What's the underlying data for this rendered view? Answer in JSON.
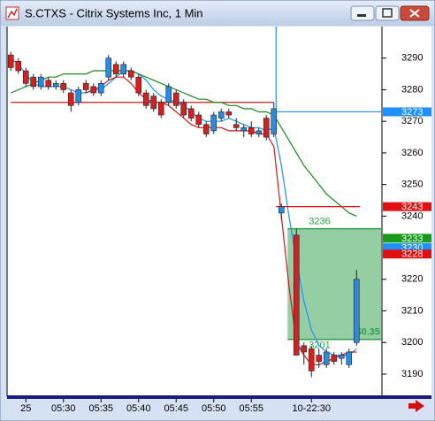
{
  "chart_data": {
    "type": "candlestick",
    "title": "S.CTXS - Citrix Systems Inc, 1 Min",
    "categories": [
      null,
      null,
      "25",
      null,
      null,
      null,
      null,
      "05:30",
      null,
      null,
      null,
      null,
      "05:35",
      null,
      null,
      null,
      null,
      "05:40",
      null,
      null,
      null,
      null,
      "05:45",
      null,
      null,
      null,
      null,
      "05:50",
      null,
      null,
      null,
      null,
      "05:55",
      null,
      null,
      null,
      null,
      null,
      null,
      null,
      "10-22:30",
      null,
      null,
      null,
      null,
      null,
      null
    ],
    "open": [
      3291,
      3289,
      3286,
      3284,
      3281,
      3283,
      3281,
      3282,
      3279,
      3276,
      3282,
      3281,
      3279,
      3284,
      3288,
      3285,
      3286,
      3284,
      3279,
      3278,
      3276,
      3276,
      3279,
      3276,
      3274,
      3272,
      3269,
      3267,
      3271,
      3273,
      3269,
      3267,
      3268,
      3266,
      3271,
      3266,
      3241,
      null,
      3234,
      3199,
      3198,
      3196,
      3193,
      3196,
      3195,
      3193,
      3200
    ],
    "high": [
      3292,
      3290,
      3287,
      3285,
      3285,
      3284,
      3283,
      3283,
      3280,
      3281,
      3283,
      3282,
      3283,
      3291,
      3289,
      3289,
      3287,
      3285,
      3280,
      3279,
      3277,
      3282,
      3280,
      3277,
      3275,
      3273,
      3270,
      3273,
      3274,
      3274,
      3271,
      3269,
      3270,
      3268,
      3272,
      3276,
      3244,
      null,
      3236,
      3200,
      3199,
      3198,
      3198,
      3197,
      3197,
      3198,
      3223
    ],
    "low": [
      3286,
      3285,
      3281,
      3280,
      3280,
      3280,
      3280,
      3279,
      3273,
      3275,
      3279,
      3278,
      3278,
      3283,
      3284,
      3284,
      3283,
      3278,
      3274,
      3273,
      3271,
      3275,
      3274,
      3271,
      3270,
      3268,
      3265,
      3266,
      3270,
      3271,
      3267,
      3265,
      3265,
      3265,
      3264,
      3265,
      3239,
      null,
      3196,
      3193,
      3189,
      3192,
      3192,
      3193,
      3193,
      3192,
      3199
    ],
    "close": [
      3287,
      3286,
      3282,
      3281,
      3284,
      3281,
      3282,
      3280,
      3275,
      3280,
      3280,
      3279,
      3282,
      3290,
      3285,
      3288,
      3284,
      3279,
      3275,
      3274,
      3272,
      3281,
      3275,
      3272,
      3271,
      3269,
      3266,
      3272,
      3273,
      3272,
      3268,
      3268,
      3266,
      3267,
      3265,
      3274,
      3243,
      null,
      3196,
      3197,
      3191,
      3194,
      3197,
      3194,
      3196,
      3197,
      3220
    ],
    "up_color": "#2a8be0",
    "down_color": "#d42020",
    "overlays": [
      {
        "color": "#1e90ff",
        "values": [
          3290,
          3288,
          3285,
          3282,
          3281,
          3281,
          3281,
          3281,
          3280,
          3279,
          3279,
          3280,
          3280,
          3282,
          3284,
          3286,
          3286,
          3285,
          3283,
          3280,
          3278,
          3277,
          3276,
          3275,
          3273,
          3271,
          3270,
          3270,
          3270,
          3271,
          3270,
          3269,
          3268,
          3268,
          3267,
          3268,
          3256,
          3240,
          3226,
          3213,
          3204,
          3199,
          3197,
          3196,
          3196,
          3196,
          3198
        ]
      },
      {
        "color": "#d01818",
        "values": [
          null,
          null,
          null,
          null,
          null,
          null,
          null,
          null,
          null,
          null,
          3279,
          3280,
          3281,
          3283,
          3284,
          3284,
          3282,
          3279,
          3277,
          3276,
          3276,
          3275,
          3273,
          3271,
          3269,
          3268,
          3268,
          3268,
          3268,
          3267,
          3267,
          3267,
          3267,
          3266,
          3266,
          3262,
          3240,
          3218,
          3200,
          3196,
          3193,
          3193,
          3194,
          3195,
          3196,
          3197,
          3197
        ]
      },
      {
        "color": "#1a8a1a",
        "values": [
          3279,
          3280,
          3281,
          3282,
          3283,
          3284,
          3284,
          3285,
          3285,
          3285,
          3285,
          3286,
          3286,
          3286,
          3286,
          3286,
          3286,
          3285,
          3284,
          3283,
          3282,
          3281,
          3280,
          3279,
          3278,
          3277,
          3277,
          3276,
          3276,
          3275,
          3275,
          3274,
          3274,
          3273,
          3273,
          3272,
          3268,
          3264,
          3260,
          3256,
          3253,
          3250,
          3247,
          3245,
          3243,
          3241,
          3240
        ]
      }
    ],
    "reference_lines": [
      {
        "value": 3276,
        "color": "#c02020"
      }
    ],
    "price_tags": [
      {
        "value": 3273,
        "color": "#1e90ff"
      },
      {
        "value": 3243,
        "color": "#e01010"
      },
      {
        "value": 3233,
        "color": "#1a9a1a"
      },
      {
        "value": 3230,
        "color": "#1e90ff"
      },
      {
        "value": 3228,
        "color": "#e01010"
      }
    ],
    "position": {
      "entry": 3236,
      "target": 3201,
      "pnl": "$0.35",
      "color": "#2e9e4a"
    },
    "ylim": [
      3183,
      3300
    ],
    "yticks": [
      3190,
      3200,
      3210,
      3220,
      3240,
      3250,
      3260,
      3270,
      3280,
      3290
    ]
  }
}
